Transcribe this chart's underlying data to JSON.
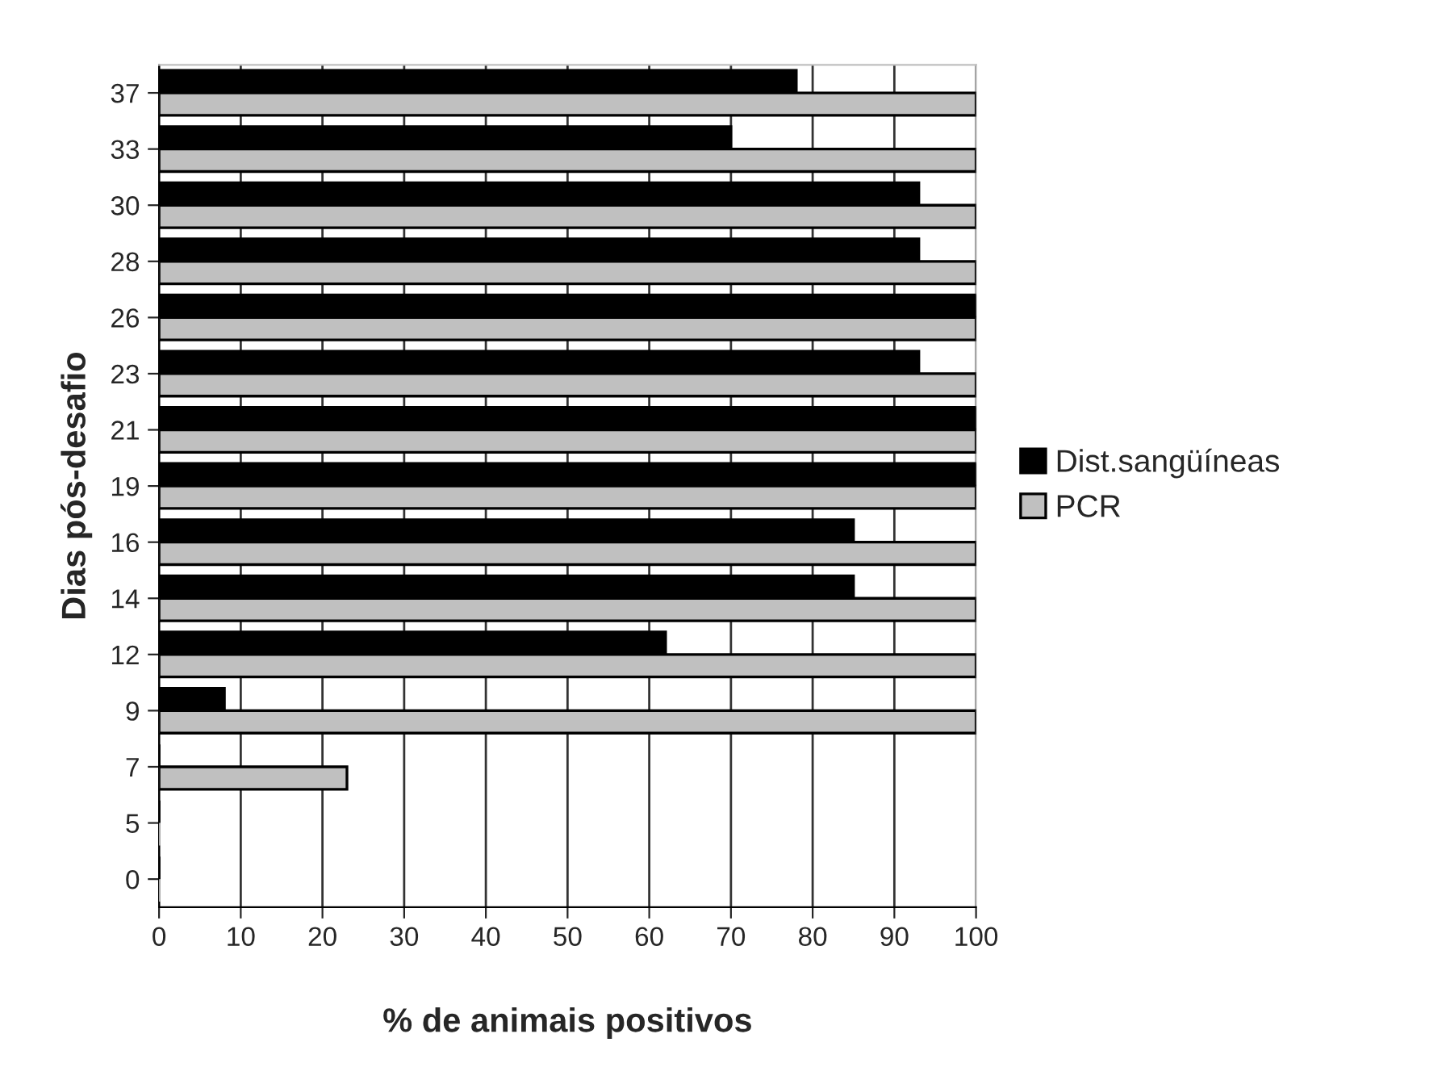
{
  "chart_data": {
    "type": "bar",
    "orientation": "horizontal",
    "xlabel": "% de animais positivos",
    "ylabel": "Dias pós-desafio",
    "categories": [
      "37",
      "33",
      "30",
      "28",
      "26",
      "23",
      "21",
      "19",
      "16",
      "14",
      "12",
      "9",
      "7",
      "5",
      "0"
    ],
    "series": [
      {
        "name": "Dist.sangüíneas",
        "color": "#000000",
        "values": [
          78,
          70,
          93,
          93,
          100,
          93,
          100,
          100,
          85,
          85,
          62,
          8,
          0,
          0,
          0
        ]
      },
      {
        "name": "PCR",
        "color": "#c0c0c0",
        "values": [
          100,
          100,
          100,
          100,
          100,
          100,
          100,
          100,
          100,
          100,
          100,
          100,
          23,
          0,
          0
        ]
      }
    ],
    "xlim": [
      0,
      100
    ],
    "xticks": [
      0,
      10,
      20,
      30,
      40,
      50,
      60,
      70,
      80,
      90,
      100
    ],
    "grid": "x",
    "legend": "right"
  }
}
